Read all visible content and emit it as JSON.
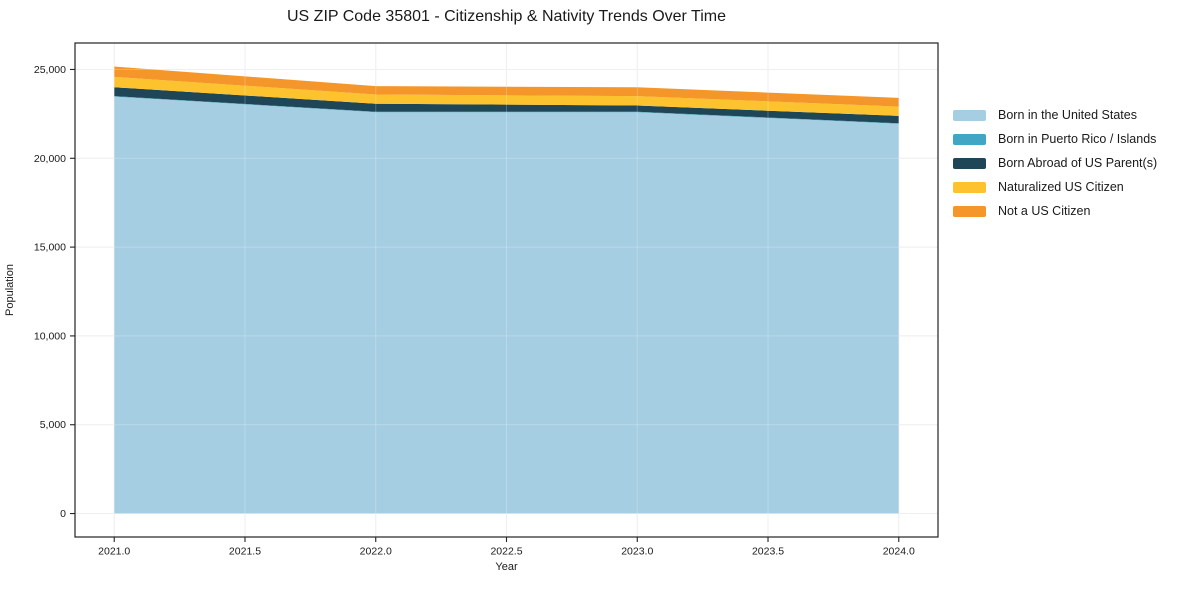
{
  "figure": {
    "title": "US ZIP Code 35801 - Citizenship & Nativity Trends Over Time"
  },
  "chart_data": {
    "type": "area",
    "stacked": true,
    "title": "US ZIP Code 35801 - Citizenship & Nativity Trends Over Time",
    "xlabel": "Year",
    "ylabel": "Population",
    "x": [
      2021,
      2022,
      2023,
      2024
    ],
    "series": [
      {
        "name": "Born in the United States",
        "color": "#A6CEE3",
        "values": [
          23470,
          22590,
          22590,
          21940
        ]
      },
      {
        "name": "Born in Puerto Rico / Islands",
        "color": "#41A6C4",
        "values": [
          30,
          30,
          30,
          30
        ]
      },
      {
        "name": "Born Abroad of US Parent(s)",
        "color": "#1E4656",
        "values": [
          500,
          450,
          350,
          420
        ]
      },
      {
        "name": "Naturalized US Citizen",
        "color": "#FDC32E",
        "values": [
          585,
          520,
          530,
          520
        ]
      },
      {
        "name": "Not a US Citizen",
        "color": "#F5962B",
        "values": [
          580,
          470,
          500,
          490
        ]
      }
    ],
    "xlim": [
      2020.85,
      2024.15
    ],
    "ylim": [
      -1320,
      26490
    ],
    "xticks": [
      2021.0,
      2021.5,
      2022.0,
      2022.5,
      2023.0,
      2023.5,
      2024.0
    ],
    "xtick_labels": [
      "2021.0",
      "2021.5",
      "2022.0",
      "2022.5",
      "2023.0",
      "2023.5",
      "2024.0"
    ],
    "yticks": [
      0,
      5000,
      10000,
      15000,
      20000,
      25000
    ],
    "ytick_labels": [
      "0",
      "5,000",
      "10,000",
      "15,000",
      "20,000",
      "25,000"
    ],
    "grid": true,
    "legend_position": "right",
    "colors": {
      "grid": "#ebebeb",
      "grid_over_area": "rgba(255,255,255,0.22)",
      "spine": "#222222",
      "tick": "#222222",
      "text": "#1a1a1a",
      "background": "#ffffff"
    }
  }
}
